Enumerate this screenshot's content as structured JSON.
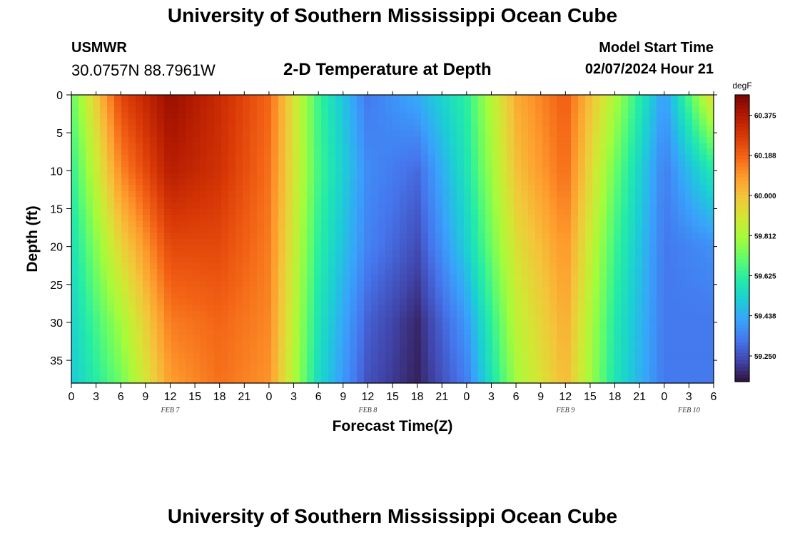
{
  "header": {
    "title": "University of Southern Mississippi Ocean Cube",
    "station": "USMWR",
    "coordinates": "30.0757N  88.7961W",
    "subtitle": "2-D Temperature at Depth",
    "model_start_label": "Model Start Time",
    "model_start_value": "02/07/2024 Hour 21"
  },
  "footer": {
    "title": "University of Southern Mississippi Ocean Cube"
  },
  "chart_data": {
    "type": "heatmap",
    "title": "2-D Temperature at Depth",
    "xlabel": "Forecast Time(Z)",
    "ylabel": "Depth (ft)",
    "colorbar_label": "degF",
    "x_range_hours": [
      0,
      78
    ],
    "x_ticks": [
      "0",
      "3",
      "6",
      "9",
      "12",
      "15",
      "18",
      "21",
      "0",
      "3",
      "6",
      "9",
      "12",
      "15",
      "18",
      "21",
      "0",
      "3",
      "6",
      "9",
      "12",
      "15",
      "18",
      "21",
      "0",
      "3",
      "6"
    ],
    "date_labels": [
      {
        "text": "FEB 7",
        "hour": 12
      },
      {
        "text": "FEB 8",
        "hour": 36
      },
      {
        "text": "FEB 9",
        "hour": 60
      },
      {
        "text": "FEB 10",
        "hour": 75
      }
    ],
    "y_range_ft": [
      0,
      38
    ],
    "y_ticks": [
      0,
      5,
      10,
      15,
      20,
      25,
      30,
      35
    ],
    "color_range_degF": [
      59.13,
      60.47
    ],
    "colorbar_ticks": [
      "60.375",
      "60.188",
      "60.000",
      "59.812",
      "59.625",
      "59.438",
      "59.250"
    ],
    "colorbar_tick_values": [
      60.375,
      60.188,
      60.0,
      59.812,
      59.625,
      59.438,
      59.25
    ],
    "colormap": [
      "#30123b",
      "#4145ab",
      "#4675ed",
      "#39a2fc",
      "#1bcfd4",
      "#24eca6",
      "#61fc6c",
      "#a4fc3b",
      "#d1e834",
      "#f3c63a",
      "#fe9b2d",
      "#f36315",
      "#d93806",
      "#b11901",
      "#7a0402"
    ],
    "grid_hours": [
      0,
      6,
      12,
      18,
      24,
      30,
      36,
      42,
      48,
      54,
      60,
      66,
      72,
      78
    ],
    "grid_depths_ft": [
      0,
      10,
      20,
      30,
      38
    ],
    "temperature_grid_degF": [
      [
        59.7,
        60.25,
        60.42,
        60.32,
        60.18,
        59.65,
        59.33,
        59.44,
        59.62,
        60.05,
        60.2,
        59.82,
        59.4,
        59.95
      ],
      [
        59.62,
        60.12,
        60.36,
        60.3,
        60.16,
        59.66,
        59.37,
        59.3,
        59.58,
        60.0,
        60.17,
        59.72,
        59.34,
        59.6
      ],
      [
        59.56,
        59.95,
        60.24,
        60.24,
        60.14,
        59.62,
        59.35,
        59.24,
        59.52,
        59.92,
        60.1,
        59.65,
        59.33,
        59.38
      ],
      [
        59.52,
        59.8,
        60.14,
        60.18,
        60.12,
        59.58,
        59.28,
        59.17,
        59.4,
        59.85,
        60.05,
        59.6,
        59.33,
        59.33
      ],
      [
        59.5,
        59.72,
        60.08,
        60.16,
        60.1,
        59.55,
        59.25,
        59.16,
        59.34,
        59.8,
        60.02,
        59.58,
        59.33,
        59.33
      ]
    ]
  }
}
